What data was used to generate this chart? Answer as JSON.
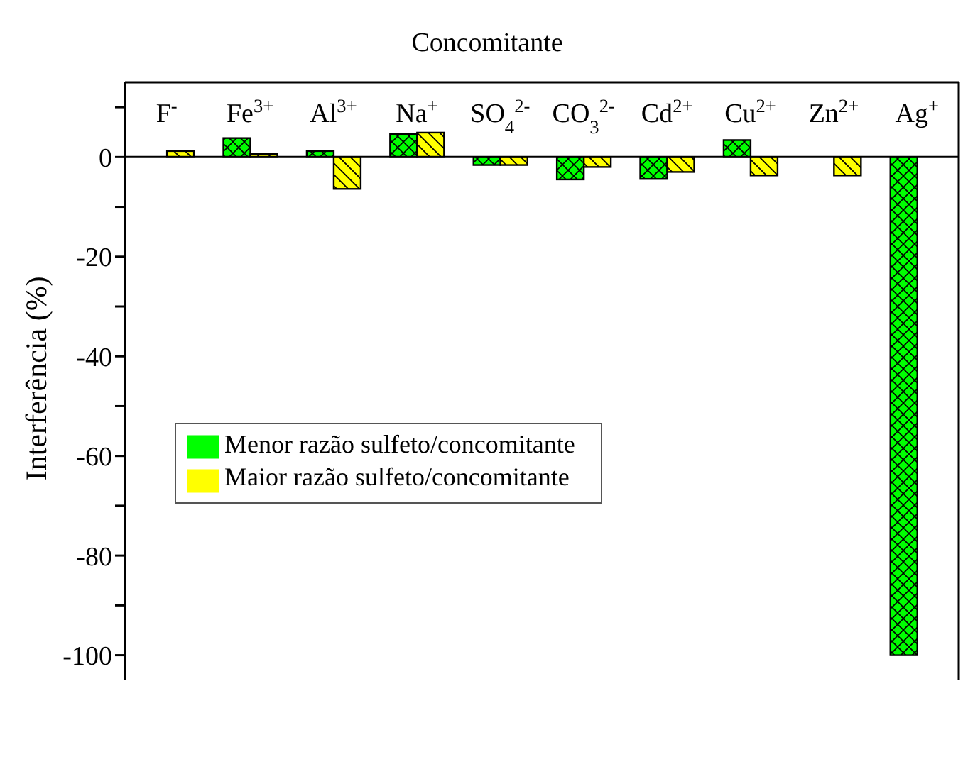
{
  "chart_data": {
    "type": "bar",
    "title": "Concomitante",
    "ylabel": "Interferência (%)",
    "categories": [
      "F$^{-}$",
      "Fe$^{3+}$",
      "Al$^{3+}$",
      "Na$^{+}$",
      "SO$_{4}$$^{2-}$",
      "CO$_{3}$$^{2-}$",
      "Cd$^{2+}$",
      "Cu$^{2+}$",
      "Zn$^{2+}$",
      "Ag$^{+}$"
    ],
    "series": [
      {
        "name": "Menor razão sulfeto/concomitante",
        "color": "#00ff00",
        "values": [
          null,
          3.8,
          1.2,
          4.6,
          -1.6,
          -4.5,
          -4.4,
          3.4,
          null,
          -100
        ]
      },
      {
        "name": "Maior razão sulfeto/concomitante",
        "color": "#ffff00",
        "values": [
          1.2,
          0.6,
          -6.4,
          4.9,
          -1.6,
          -2.0,
          -3.0,
          -3.7,
          -3.7,
          null
        ]
      }
    ],
    "ylim": [
      -105,
      15
    ],
    "yticks": [
      {
        "value": 10,
        "label": null
      },
      0,
      {
        "value": -10,
        "label": null
      },
      -20,
      {
        "value": -30,
        "label": null
      },
      -40,
      {
        "value": -50,
        "label": null
      },
      -60,
      {
        "value": -70,
        "label": null
      },
      -80,
      {
        "value": -90,
        "label": null
      },
      -100
    ],
    "ref_lines": [
      {
        "axis": "y",
        "value": 0,
        "color": "#000000"
      }
    ],
    "legend": "left"
  }
}
